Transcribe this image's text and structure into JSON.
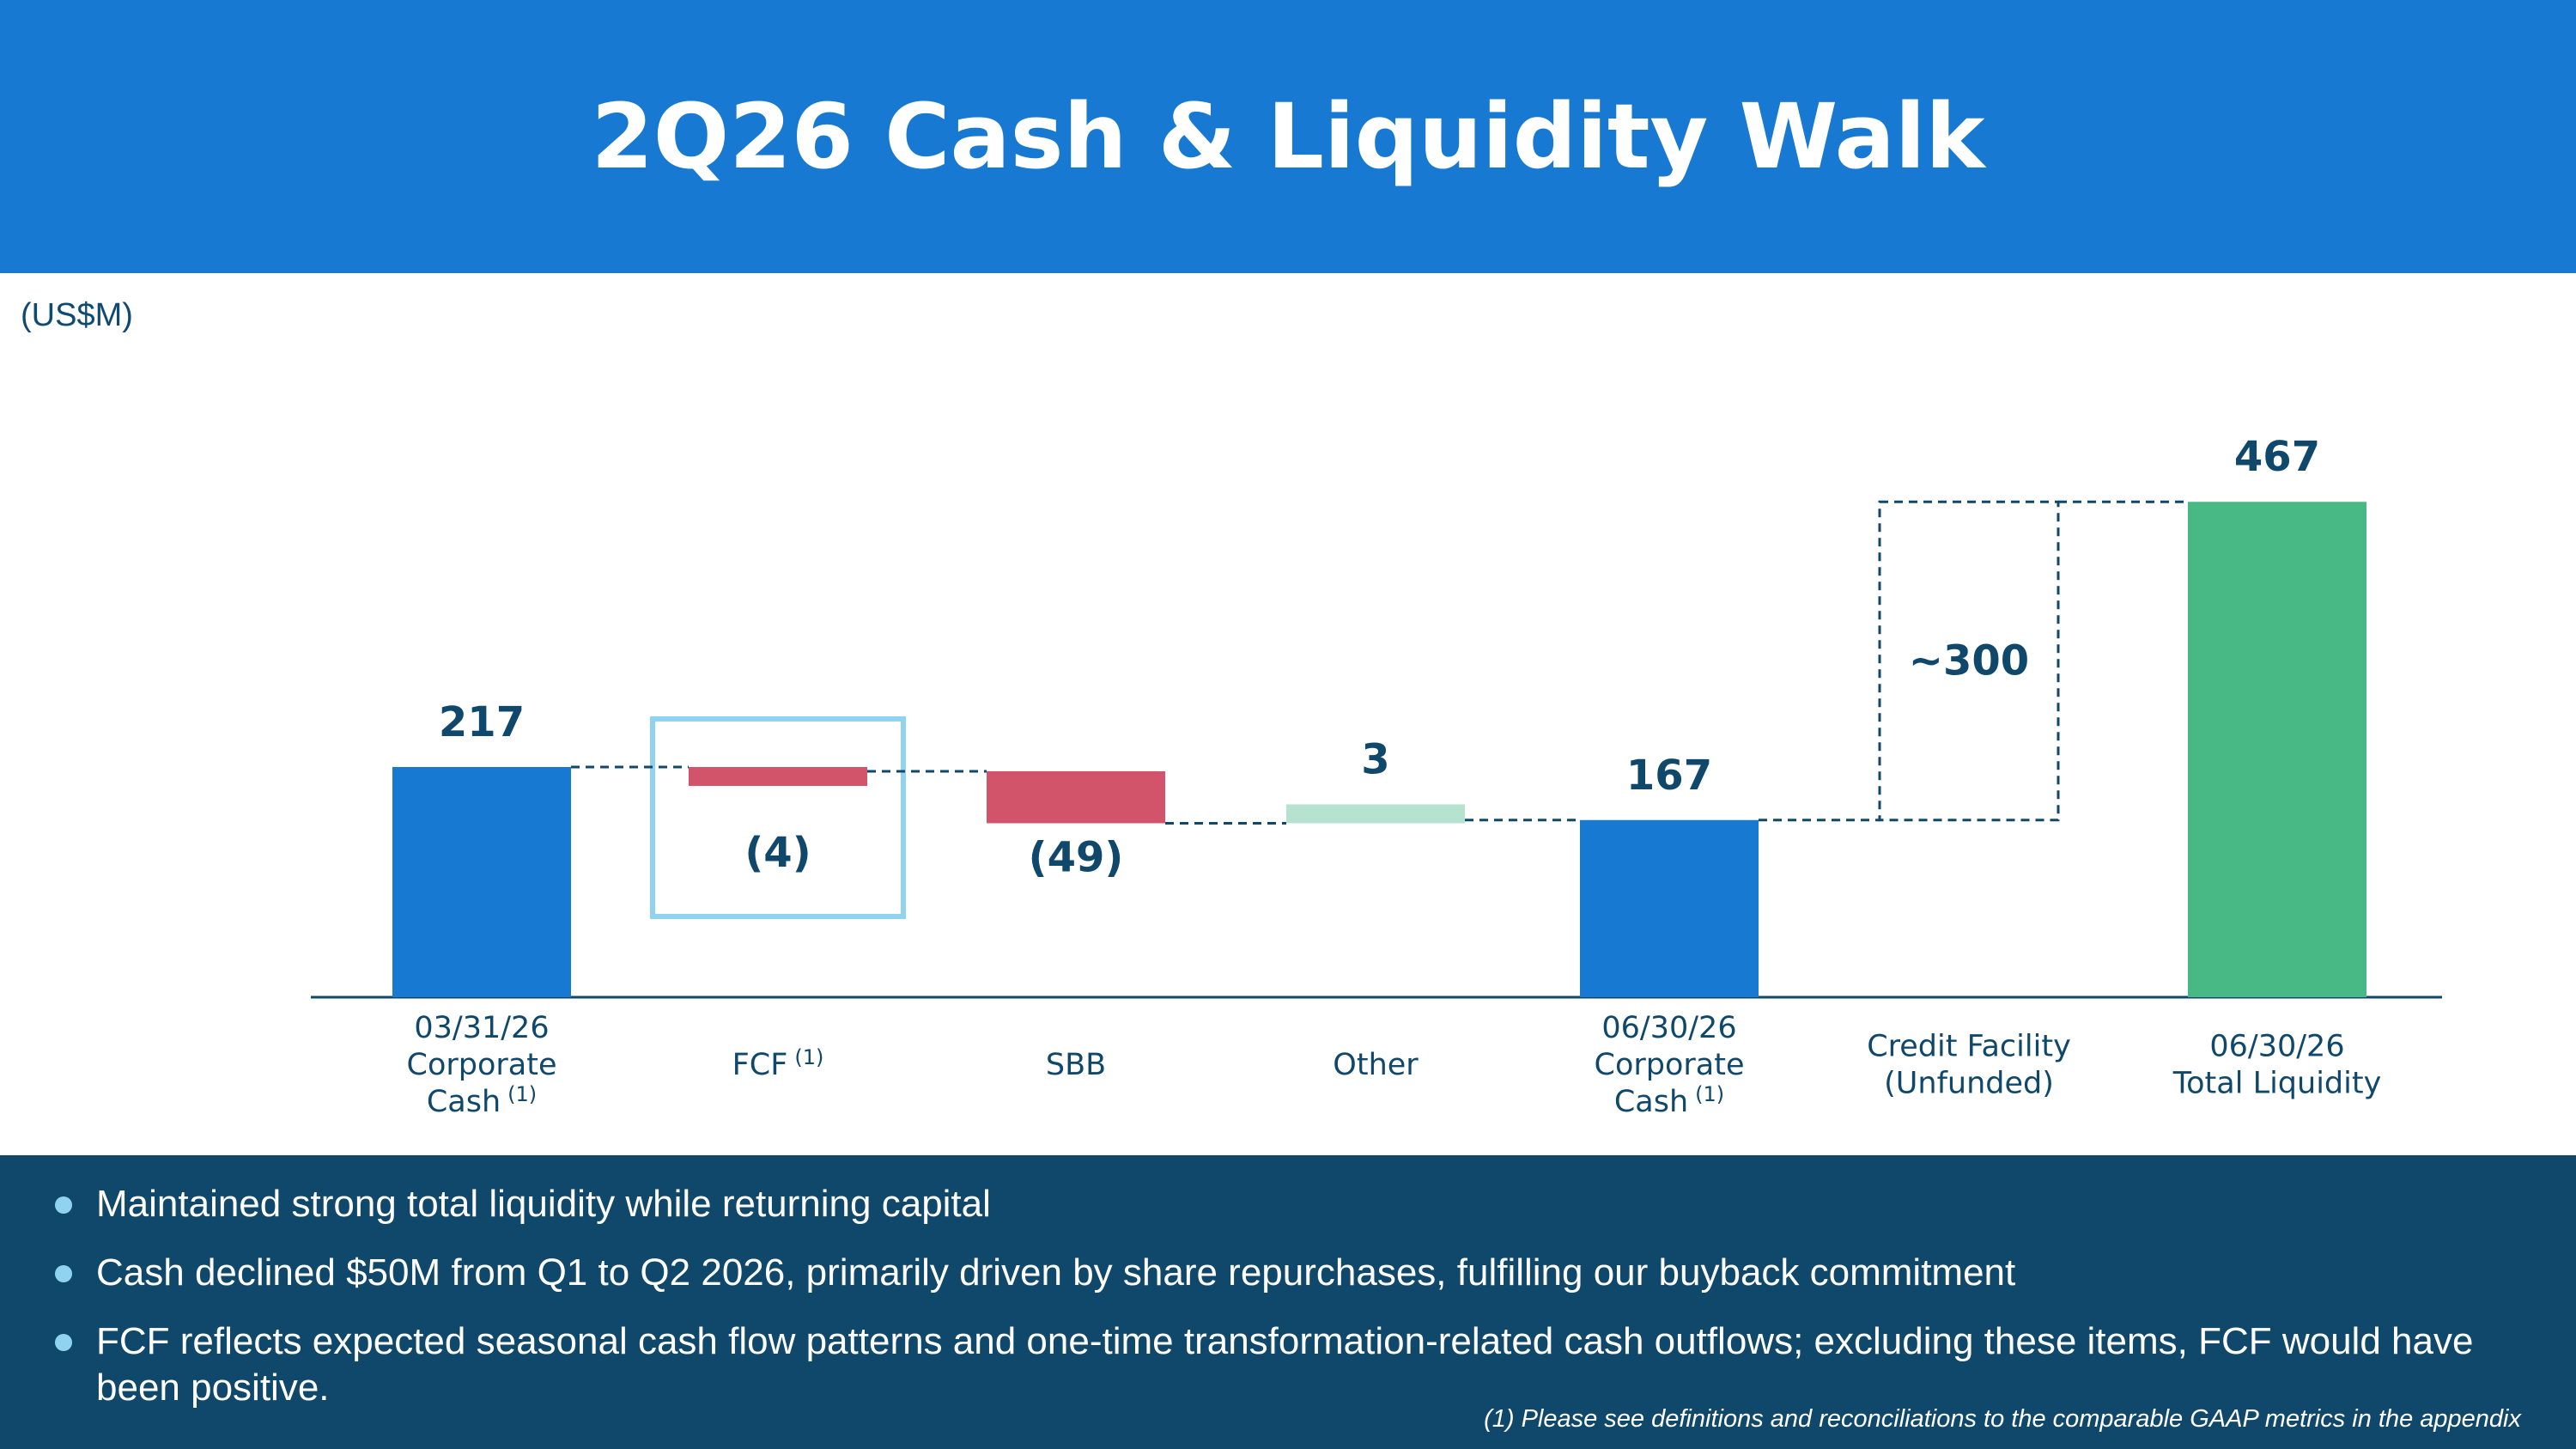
{
  "header": {
    "title": "2Q26 Cash & Liquidity Walk"
  },
  "units_label": "(US$M)",
  "chart_data": {
    "type": "waterfall",
    "units": "US$M",
    "categories": [
      {
        "lines": [
          "03/31/26",
          "Corporate",
          "Cash"
        ],
        "footnote": "(1)"
      },
      {
        "lines": [
          "FCF"
        ],
        "footnote": "(1)"
      },
      {
        "lines": [
          "SBB"
        ],
        "footnote": ""
      },
      {
        "lines": [
          "Other"
        ],
        "footnote": ""
      },
      {
        "lines": [
          "06/30/26",
          "Corporate",
          "Cash"
        ],
        "footnote": "(1)"
      },
      {
        "lines": [
          "Credit Facility",
          "(Unfunded)"
        ],
        "footnote": ""
      },
      {
        "lines": [
          "06/30/26",
          "Total Liquidity"
        ],
        "footnote": ""
      }
    ],
    "steps": [
      {
        "kind": "total",
        "value": 217,
        "label": "217",
        "color": "#1779d2"
      },
      {
        "kind": "delta",
        "value": -4,
        "label": "(4)",
        "color": "#d2546a",
        "highlight": true
      },
      {
        "kind": "delta",
        "value": -49,
        "label": "(49)",
        "color": "#d2546a"
      },
      {
        "kind": "delta",
        "value": 3,
        "label": "3",
        "color": "#b6e3d0"
      },
      {
        "kind": "total",
        "value": 167,
        "label": "167",
        "color": "#1779d2"
      },
      {
        "kind": "unfunded",
        "value": 300,
        "label": "~300",
        "color": "#10486c"
      },
      {
        "kind": "total",
        "value": 467,
        "label": "467",
        "color": "#48b985"
      }
    ],
    "highlight_color": "#8fd3f0",
    "connector_color": "#10486c"
  },
  "footer": {
    "bullets": [
      "Maintained strong total liquidity while returning capital",
      "Cash declined $50M from Q1 to Q2 2026, primarily driven by share repurchases, fulfilling our buyback commitment",
      "FCF reflects expected seasonal cash flow patterns and one-time transformation-related cash outflows; excluding these items, FCF would have been positive."
    ],
    "footnote": "(1) Please see definitions and reconciliations to the comparable GAAP metrics in the appendix"
  }
}
